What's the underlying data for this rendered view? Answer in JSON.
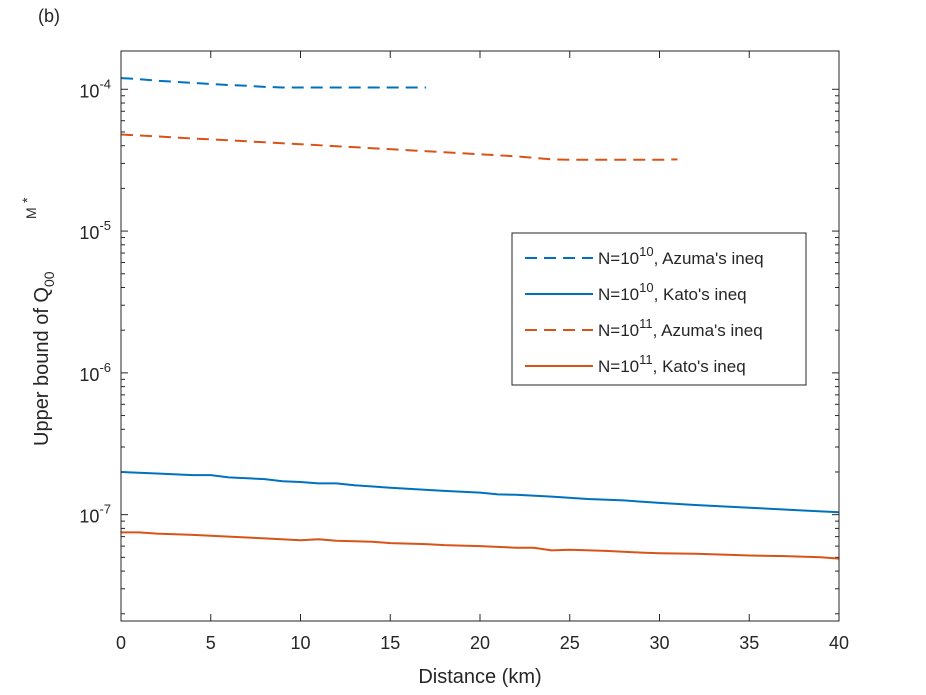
{
  "chart_data": {
    "type": "line",
    "panel_label": "(b)",
    "xlabel": "Distance (km)",
    "ylabel": "Upper bound of Q",
    "ylabel_sub": "00",
    "ylabel_sup": "M",
    "ylabel_star": "*",
    "xlim": [
      0,
      40
    ],
    "ylim_exp": [
      -7.75,
      -3.73
    ],
    "yscale": "log",
    "xticks": [
      0,
      5,
      10,
      15,
      20,
      25,
      30,
      35,
      40
    ],
    "yticks": [
      {
        "exp": -7,
        "base": "10",
        "power": "-7"
      },
      {
        "exp": -6,
        "base": "10",
        "power": "-6"
      },
      {
        "exp": -5,
        "base": "10",
        "power": "-5"
      },
      {
        "exp": -4,
        "base": "10",
        "power": "-4"
      }
    ],
    "legend_position": "right-center",
    "series": [
      {
        "name_base": "N=10",
        "name_power": "10",
        "name_rest": ", Azuma's ineq",
        "color": "#0072BD",
        "dash": true,
        "x": [
          0,
          1,
          2,
          3,
          4,
          5,
          6,
          7,
          8,
          9,
          10,
          11,
          12,
          13,
          14,
          15,
          16,
          17
        ],
        "y": [
          0.00012,
          0.000118,
          0.000115,
          0.000113,
          0.000111,
          0.000109,
          0.000107,
          0.000106,
          0.000104,
          0.000103,
          0.000103,
          0.000103,
          0.000103,
          0.000103,
          0.000103,
          0.000103,
          0.000103,
          0.000103
        ]
      },
      {
        "name_base": "N=10",
        "name_power": "10",
        "name_rest": ", Kato's ineq",
        "color": "#0072BD",
        "dash": false,
        "x": [
          0,
          2,
          4,
          5,
          6,
          8,
          9,
          10,
          11,
          12,
          13,
          15,
          18,
          20,
          21,
          22,
          24,
          26,
          28,
          30,
          32,
          35,
          38,
          40
        ],
        "y": [
          2e-07,
          1.95e-07,
          1.9e-07,
          1.9e-07,
          1.83e-07,
          1.78e-07,
          1.72e-07,
          1.7e-07,
          1.66e-07,
          1.66e-07,
          1.61e-07,
          1.55e-07,
          1.47e-07,
          1.43e-07,
          1.39e-07,
          1.38e-07,
          1.34e-07,
          1.29e-07,
          1.26e-07,
          1.21e-07,
          1.17e-07,
          1.12e-07,
          1.07e-07,
          1.04e-07
        ]
      },
      {
        "name_base": "N=10",
        "name_power": "11",
        "name_rest": ", Azuma's ineq",
        "color": "#D95319",
        "dash": true,
        "x": [
          0,
          2,
          4,
          6,
          8,
          10,
          12,
          14,
          16,
          18,
          20,
          22,
          24,
          25,
          26,
          28,
          30,
          31
        ],
        "y": [
          4.8e-05,
          4.65e-05,
          4.5e-05,
          4.37e-05,
          4.23e-05,
          4.1e-05,
          3.97e-05,
          3.84e-05,
          3.72e-05,
          3.6e-05,
          3.48e-05,
          3.37e-05,
          3.2e-05,
          3.18e-05,
          3.18e-05,
          3.18e-05,
          3.18e-05,
          3.2e-05
        ]
      },
      {
        "name_base": "N=10",
        "name_power": "11",
        "name_rest": ", Kato's ineq",
        "color": "#D95319",
        "dash": false,
        "x": [
          0,
          1,
          2,
          4,
          6,
          8,
          10,
          11,
          12,
          14,
          15,
          17,
          18,
          20,
          22,
          23,
          24,
          25,
          27,
          29,
          30,
          32,
          34,
          35,
          37,
          39,
          40
        ],
        "y": [
          7.5e-08,
          7.5e-08,
          7.35e-08,
          7.2e-08,
          7e-08,
          6.8e-08,
          6.6e-08,
          6.7e-08,
          6.55e-08,
          6.45e-08,
          6.3e-08,
          6.2e-08,
          6.1e-08,
          6e-08,
          5.85e-08,
          5.85e-08,
          5.6e-08,
          5.65e-08,
          5.55e-08,
          5.4e-08,
          5.35e-08,
          5.3e-08,
          5.2e-08,
          5.15e-08,
          5.1e-08,
          5e-08,
          4.9e-08
        ]
      }
    ]
  }
}
